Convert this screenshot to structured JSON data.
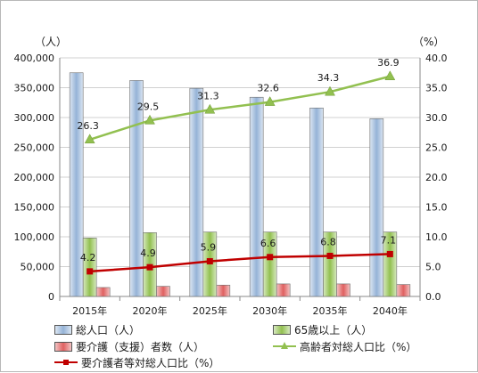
{
  "chart_data": {
    "type": "bar",
    "categories": [
      "2015年",
      "2020年",
      "2025年",
      "2030年",
      "2035年",
      "2040年"
    ],
    "left_axis": {
      "unit_label": "（人）",
      "ylim": [
        0,
        400000
      ],
      "step": 50000,
      "tick_labels": [
        "0",
        "50,000",
        "100,000",
        "150,000",
        "200,000",
        "250,000",
        "300,000",
        "350,000",
        "400,000"
      ]
    },
    "right_axis": {
      "unit_label": "（%）",
      "ylim": [
        0,
        40
      ],
      "step": 5,
      "tick_labels": [
        "0.0",
        "5.0",
        "10.0",
        "15.0",
        "20.0",
        "25.0",
        "30.0",
        "35.0",
        "40.0"
      ]
    },
    "series": [
      {
        "name": "総人口（人）",
        "kind": "bar",
        "axis": "left",
        "color": "#95b3d7",
        "values": [
          375000,
          362000,
          349000,
          334000,
          316000,
          298000
        ]
      },
      {
        "name": "65歳以上（人）",
        "kind": "bar",
        "axis": "left",
        "color": "#92c050",
        "values": [
          98000,
          107000,
          108000,
          108000,
          108000,
          108000
        ]
      },
      {
        "name": "要介護（支援）者数（人）",
        "kind": "bar",
        "axis": "left",
        "color": "#e06060",
        "values": [
          15000,
          17000,
          19000,
          21000,
          21000,
          20000
        ]
      },
      {
        "name": "高齢者対総人口比（%）",
        "kind": "line",
        "axis": "right",
        "color": "#92c050",
        "marker": "triangle",
        "values": [
          26.3,
          29.5,
          31.3,
          32.6,
          34.3,
          36.9
        ],
        "data_labels": [
          "26.3",
          "29.5",
          "31.3",
          "32.6",
          "34.3",
          "36.9"
        ]
      },
      {
        "name": "要介護者等対総人口比（%）",
        "kind": "line",
        "axis": "right",
        "color": "#c00000",
        "marker": "square",
        "values": [
          4.2,
          4.9,
          5.9,
          6.6,
          6.8,
          7.1
        ],
        "data_labels": [
          "4.2",
          "4.9",
          "5.9",
          "6.6",
          "6.8",
          "7.1"
        ]
      }
    ],
    "grid": true,
    "legend_position": "bottom"
  }
}
